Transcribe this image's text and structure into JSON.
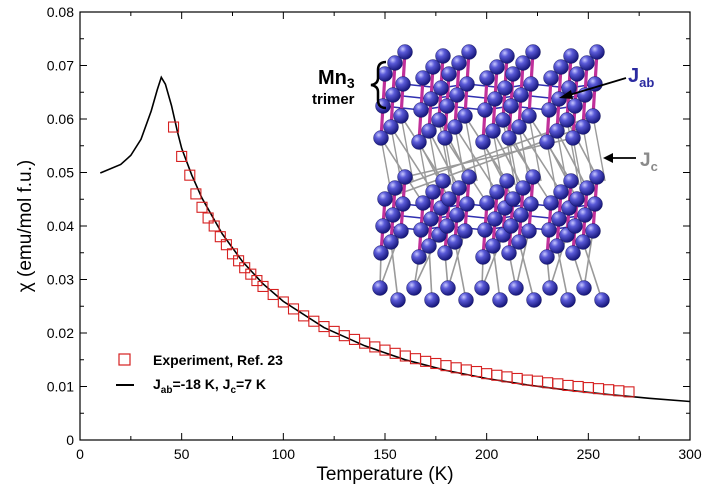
{
  "chart_data": {
    "type": "scatter",
    "title": "",
    "xlabel": "Temperature (K)",
    "ylabel": "χ (emu/mol f.u.)",
    "xlim": [
      0,
      300
    ],
    "ylim": [
      0,
      0.08
    ],
    "xticks": [
      0,
      50,
      100,
      150,
      200,
      250,
      300
    ],
    "yticks": [
      0,
      0.01,
      0.02,
      0.03,
      0.04,
      0.05,
      0.06,
      0.07,
      0.08
    ],
    "xtick_labels": [
      "0",
      "50",
      "100",
      "150",
      "200",
      "250",
      "300"
    ],
    "ytick_labels": [
      "0",
      "0.01",
      "0.02",
      "0.03",
      "0.04",
      "0.05",
      "0.06",
      "0.07",
      "0.08"
    ],
    "series": [
      {
        "name": "Experiment, Ref. 23",
        "kind": "scatter",
        "marker": "open-square",
        "color": "#d62020",
        "x": [
          46,
          50,
          54,
          57,
          60,
          63,
          66,
          69,
          72,
          75,
          78,
          81,
          84,
          87,
          90,
          95,
          100,
          105,
          110,
          115,
          120,
          125,
          130,
          135,
          140,
          145,
          150,
          155,
          160,
          165,
          170,
          175,
          180,
          185,
          190,
          195,
          200,
          205,
          210,
          215,
          220,
          225,
          230,
          235,
          240,
          245,
          250,
          255,
          260,
          265,
          270
        ],
        "y": [
          0.0585,
          0.053,
          0.0495,
          0.046,
          0.0435,
          0.0415,
          0.04,
          0.038,
          0.0365,
          0.0348,
          0.0335,
          0.0322,
          0.031,
          0.0298,
          0.0287,
          0.0272,
          0.0258,
          0.0245,
          0.0232,
          0.0222,
          0.0212,
          0.0203,
          0.0195,
          0.0188,
          0.0181,
          0.0174,
          0.0168,
          0.0162,
          0.0157,
          0.0152,
          0.0147,
          0.0143,
          0.0139,
          0.0135,
          0.0131,
          0.0128,
          0.0124,
          0.0121,
          0.0118,
          0.0115,
          0.0112,
          0.011,
          0.0107,
          0.0105,
          0.0102,
          0.01,
          0.0098,
          0.0096,
          0.0094,
          0.0092,
          0.009
        ]
      },
      {
        "name": "Jab=-18 K, Jc=7 K",
        "kind": "line",
        "color": "#000000",
        "x": [
          10,
          20,
          25,
          30,
          35,
          38,
          40,
          42,
          45,
          48,
          50,
          55,
          60,
          70,
          80,
          90,
          100,
          120,
          140,
          160,
          180,
          200,
          220,
          240,
          260,
          280,
          300
        ],
        "y": [
          0.0499,
          0.0515,
          0.0532,
          0.0562,
          0.0615,
          0.0655,
          0.0678,
          0.0665,
          0.0625,
          0.0575,
          0.0545,
          0.0495,
          0.0452,
          0.0385,
          0.0333,
          0.0292,
          0.0259,
          0.021,
          0.0176,
          0.015,
          0.013,
          0.0115,
          0.0103,
          0.0093,
          0.0085,
          0.0078,
          0.0072
        ]
      }
    ],
    "legend": {
      "position": "bottom-left",
      "entries": [
        {
          "label": "Experiment, Ref. 23",
          "marker": "open-square"
        },
        {
          "main": "J",
          "sub1": "ab",
          "mid": "=-18 K, J",
          "sub2": "c",
          "tail": "=7 K",
          "marker": "line"
        }
      ]
    },
    "inset": {
      "description_label": "Mn3 trimer",
      "mn_label_main": "Mn",
      "mn_label_sub": "3",
      "trimer_label": "trimer",
      "jab_main": "J",
      "jab_sub": "ab",
      "jc_main": "J",
      "jc_sub": "c",
      "atom_color": "#2a2aa0",
      "bond_magenta": "#c0309a",
      "bond_blue": "#3030b0",
      "bond_gray": "#9a9a9a",
      "jc_label_color": "#8a8a8a"
    }
  }
}
